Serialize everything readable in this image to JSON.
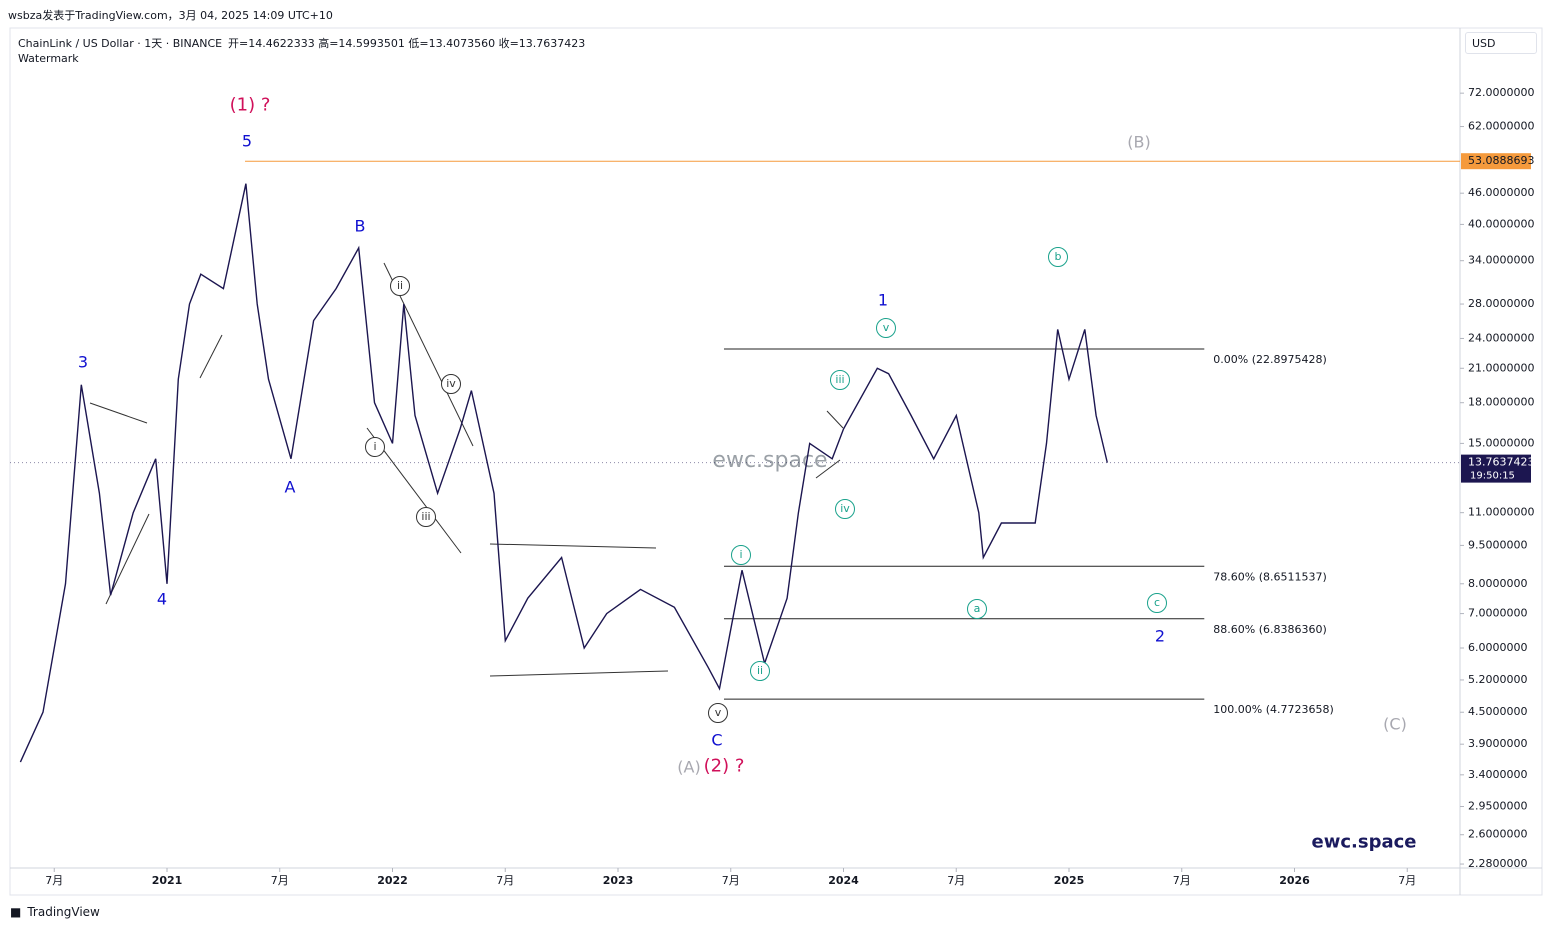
{
  "header": {
    "attribution": "wsbza发表于TradingView.com，3月 04, 2025 14:09 UTC+10",
    "symbol": "ChainLink / US Dollar · 1天 · BINANCE",
    "ohlc": "开=14.4622333  高=14.5993501  低=13.4073560  收=13.7637423",
    "watermark_label": "Watermark"
  },
  "chart_data": {
    "type": "line",
    "color": "#1c1650",
    "log_scale": true,
    "x": [
      2020.35,
      2020.45,
      2020.55,
      2020.62,
      2020.7,
      2020.75,
      2020.85,
      2020.95,
      2021.0,
      2021.05,
      2021.1,
      2021.15,
      2021.25,
      2021.35,
      2021.4,
      2021.45,
      2021.55,
      2021.65,
      2021.75,
      2021.85,
      2021.92,
      2022.0,
      2022.05,
      2022.1,
      2022.2,
      2022.3,
      2022.35,
      2022.45,
      2022.5,
      2022.6,
      2022.75,
      2022.85,
      2022.95,
      2023.1,
      2023.25,
      2023.4,
      2023.45,
      2023.55,
      2023.65,
      2023.75,
      2023.8,
      2023.85,
      2023.95,
      2024.0,
      2024.15,
      2024.2,
      2024.3,
      2024.4,
      2024.5,
      2024.6,
      2024.62,
      2024.7,
      2024.85,
      2024.9,
      2024.95,
      2025.0,
      2025.07,
      2025.12,
      2025.17
    ],
    "values": [
      3.6,
      4.5,
      8,
      19.5,
      12,
      7.6,
      11,
      14,
      8,
      20,
      28,
      32,
      30,
      48,
      28,
      20,
      14,
      26,
      30,
      36,
      18,
      15,
      28,
      17,
      12,
      16,
      19,
      12,
      6.2,
      7.5,
      9,
      6,
      7,
      7.8,
      7.2,
      5.5,
      5,
      8.5,
      5.6,
      7.5,
      11,
      15,
      14,
      16,
      21,
      20.5,
      17,
      14,
      17,
      11,
      9,
      10.5,
      10.5,
      15,
      25,
      20,
      25,
      17,
      13.7637423
    ],
    "xlim": [
      2020.35,
      2026.7
    ],
    "ylim": [
      2.24,
      96.4
    ],
    "xticks": [
      {
        "value": 2020.5,
        "label": "7月"
      },
      {
        "value": 2021,
        "label": "2021"
      },
      {
        "value": 2021.5,
        "label": "7月"
      },
      {
        "value": 2022,
        "label": "2022"
      },
      {
        "value": 2022.5,
        "label": "7月"
      },
      {
        "value": 2023,
        "label": "2023"
      },
      {
        "value": 2023.5,
        "label": "7月"
      },
      {
        "value": 2024,
        "label": "2024"
      },
      {
        "value": 2024.5,
        "label": "7月"
      },
      {
        "value": 2025,
        "label": "2025"
      },
      {
        "value": 2025.5,
        "label": "7月"
      },
      {
        "value": 2026,
        "label": "2026"
      },
      {
        "value": 2026.5,
        "label": "7月"
      }
    ],
    "yticks": [
      {
        "value": 2.28,
        "label": "2.2800000"
      },
      {
        "value": 2.6,
        "label": "2.6000000"
      },
      {
        "value": 2.95,
        "label": "2.9500000"
      },
      {
        "value": 3.4,
        "label": "3.4000000"
      },
      {
        "value": 3.9,
        "label": "3.9000000"
      },
      {
        "value": 4.5,
        "label": "4.5000000"
      },
      {
        "value": 5.2,
        "label": "5.2000000"
      },
      {
        "value": 6,
        "label": "6.0000000"
      },
      {
        "value": 7,
        "label": "7.0000000"
      },
      {
        "value": 8,
        "label": "8.0000000"
      },
      {
        "value": 9.5,
        "label": "9.5000000"
      },
      {
        "value": 11,
        "label": "11.0000000"
      },
      {
        "value": 15,
        "label": "15.0000000"
      },
      {
        "value": 18,
        "label": "18.0000000"
      },
      {
        "value": 21,
        "label": "21.0000000"
      },
      {
        "value": 24,
        "label": "24.0000000"
      },
      {
        "value": 28,
        "label": "28.0000000"
      },
      {
        "value": 34,
        "label": "34.0000000"
      },
      {
        "value": 40,
        "label": "40.0000000"
      },
      {
        "value": 46,
        "label": "46.0000000"
      },
      {
        "value": 62,
        "label": "62.0000000"
      },
      {
        "value": 72,
        "label": "72.0000000"
      }
    ],
    "currency": "USD",
    "reference_line": {
      "value": 53.0888693,
      "label": "53.0888693",
      "color": "#f59a3c"
    },
    "last_price": {
      "value": 13.7637423,
      "label": "13.7637423",
      "countdown": "19:50:15"
    },
    "fib_x": [
      2023.47,
      2025.6
    ],
    "fib_levels": [
      {
        "value": 22.8975428,
        "label": "0.00% (22.8975428)"
      },
      {
        "value": 8.6511537,
        "label": "78.60% (8.6511537)"
      },
      {
        "value": 6.838636,
        "label": "88.60% (6.8386360)"
      },
      {
        "value": 4.7723658,
        "label": "100.00% (4.7723658)"
      }
    ],
    "wave_labels": [
      "(1) ?",
      "5",
      "3",
      "4",
      "A",
      "B",
      "i",
      "ii",
      "iii",
      "iv",
      "v",
      "C",
      "(A)",
      "(2) ?",
      "i",
      "ii",
      "iii",
      "iv",
      "v",
      "a",
      "b",
      "c",
      "1",
      "2",
      "(B)",
      "(C)"
    ],
    "watermark": "ewc.space"
  },
  "footer": {
    "brand": "TradingView"
  }
}
